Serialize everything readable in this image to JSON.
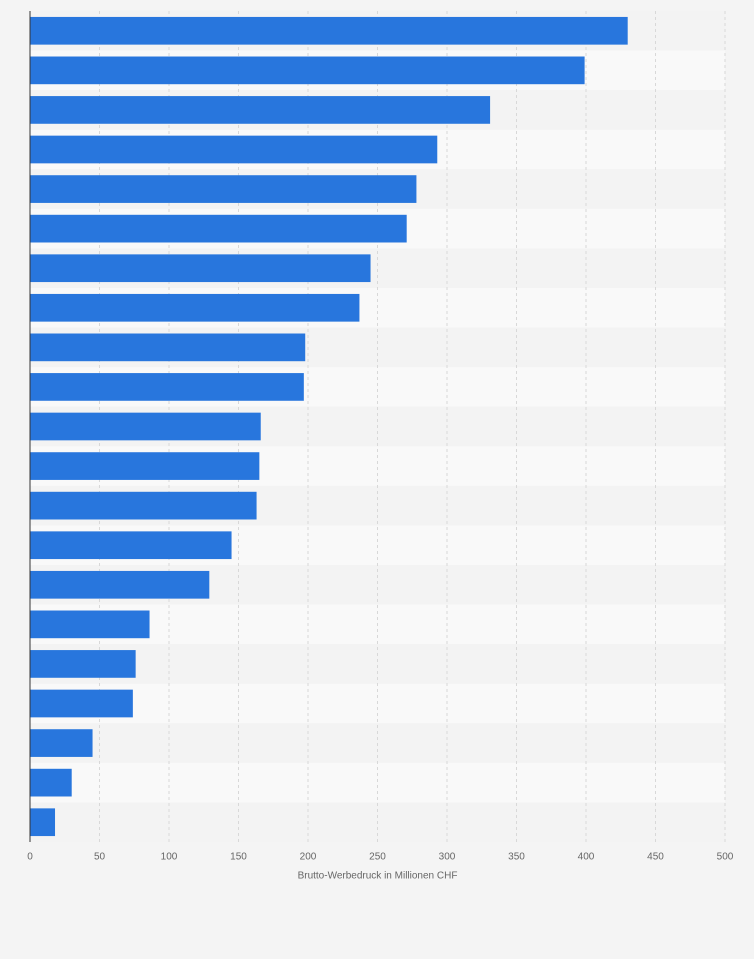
{
  "chart_data": {
    "type": "barh",
    "categories": [
      null,
      null,
      null,
      null,
      null,
      null,
      null,
      null,
      null,
      null,
      null,
      null,
      null,
      null,
      null,
      null,
      null,
      null,
      null,
      null,
      null
    ],
    "values": [
      430,
      399,
      331,
      293,
      278,
      271,
      245,
      237,
      198,
      197,
      166,
      165,
      163,
      145,
      129,
      86,
      76,
      74,
      45,
      30,
      18
    ],
    "color": "#2876dd",
    "xlim": [
      0,
      500
    ],
    "xticks": [
      0,
      50,
      100,
      150,
      200,
      250,
      300,
      350,
      400,
      450,
      500
    ],
    "xlabel": "Brutto-Werbedruck in Millionen CHF",
    "grid": true
  }
}
